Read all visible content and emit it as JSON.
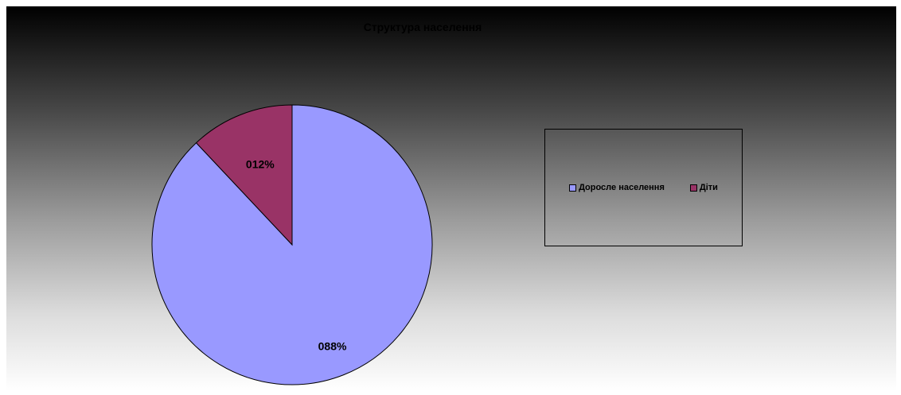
{
  "chart_data": {
    "type": "pie",
    "title": "Структура населення",
    "categories": [
      "Доросле населення",
      "Діти"
    ],
    "values": [
      88,
      12
    ],
    "data_labels": [
      "088%",
      "012%"
    ],
    "colors": [
      "#9999ff",
      "#993366"
    ],
    "legend_position": "right"
  }
}
